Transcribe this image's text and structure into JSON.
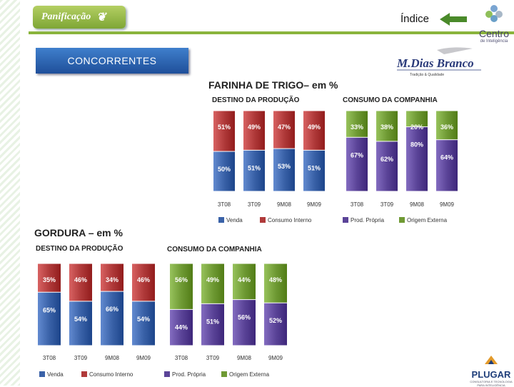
{
  "header": {
    "section_label": "Panificação",
    "index_link": "Índice",
    "logo_centro": "Centro",
    "logo_centro_sub": "de Inteligência",
    "slide_title": "CONCORRENTES",
    "brand_logo": "M.Dias Branco",
    "brand_tagline": "Tradição & Qualidade",
    "footer_logo": "PLUGAR",
    "footer_logo_sub": "CONSULTORIA E TECNOLOGIA PARA INTELIGÊNCIA"
  },
  "colors": {
    "venda": "#3a62a8",
    "consumo_interno": "#b03a3a",
    "prod_propria": "#5b4498",
    "origem_externa": "#6f9a34",
    "accent_green": "#8ab43c",
    "title_blue": "#2a5fb0"
  },
  "chart_data": [
    {
      "id": "farinha",
      "title": "FARINHA DE TRIGO– em %",
      "panels": [
        {
          "id": "farinha-destino",
          "type": "bar",
          "stacked": true,
          "subtitle": "DESTINO DA PRODUÇÃO",
          "categories": [
            "3T08",
            "3T09",
            "9M08",
            "9M09"
          ],
          "series": [
            {
              "name": "Venda",
              "color_key": "venda",
              "values": [
                50,
                51,
                53,
                51
              ]
            },
            {
              "name": "Consumo Interno",
              "color_key": "consumo_interno",
              "values": [
                51,
                49,
                47,
                49
              ]
            }
          ]
        },
        {
          "id": "farinha-consumo",
          "type": "bar",
          "stacked": true,
          "subtitle": "CONSUMO DA COMPANHIA",
          "categories": [
            "3T08",
            "3T09",
            "9M08",
            "9M09"
          ],
          "series": [
            {
              "name": "Prod. Própria",
              "color_key": "prod_propria",
              "values": [
                67,
                62,
                80,
                64
              ]
            },
            {
              "name": "Origem Externa",
              "color_key": "origem_externa",
              "values": [
                33,
                38,
                20,
                36
              ]
            }
          ]
        }
      ],
      "legend": [
        "Venda",
        "Consumo Interno",
        "Prod. Própria",
        "Origem Externa"
      ]
    },
    {
      "id": "gordura",
      "title": "GORDURA – em %",
      "panels": [
        {
          "id": "gordura-destino",
          "type": "bar",
          "stacked": true,
          "subtitle": "DESTINO DA PRODUÇÃO",
          "categories": [
            "3T08",
            "3T09",
            "9M08",
            "9M09"
          ],
          "series": [
            {
              "name": "Venda",
              "color_key": "venda",
              "values": [
                65,
                54,
                66,
                54
              ]
            },
            {
              "name": "Consumo Interno",
              "color_key": "consumo_interno",
              "values": [
                35,
                46,
                34,
                46
              ]
            }
          ]
        },
        {
          "id": "gordura-consumo",
          "type": "bar",
          "stacked": true,
          "subtitle": "CONSUMO DA COMPANHIA",
          "categories": [
            "3T08",
            "3T09",
            "9M08",
            "9M09"
          ],
          "series": [
            {
              "name": "Prod. Própria",
              "color_key": "prod_propria",
              "values": [
                44,
                51,
                56,
                52
              ]
            },
            {
              "name": "Origem Externa",
              "color_key": "origem_externa",
              "values": [
                56,
                49,
                44,
                48
              ]
            }
          ]
        }
      ],
      "legend": [
        "Venda",
        "Consumo Interno",
        "Prod. Própria",
        "Origem Externa"
      ]
    }
  ]
}
